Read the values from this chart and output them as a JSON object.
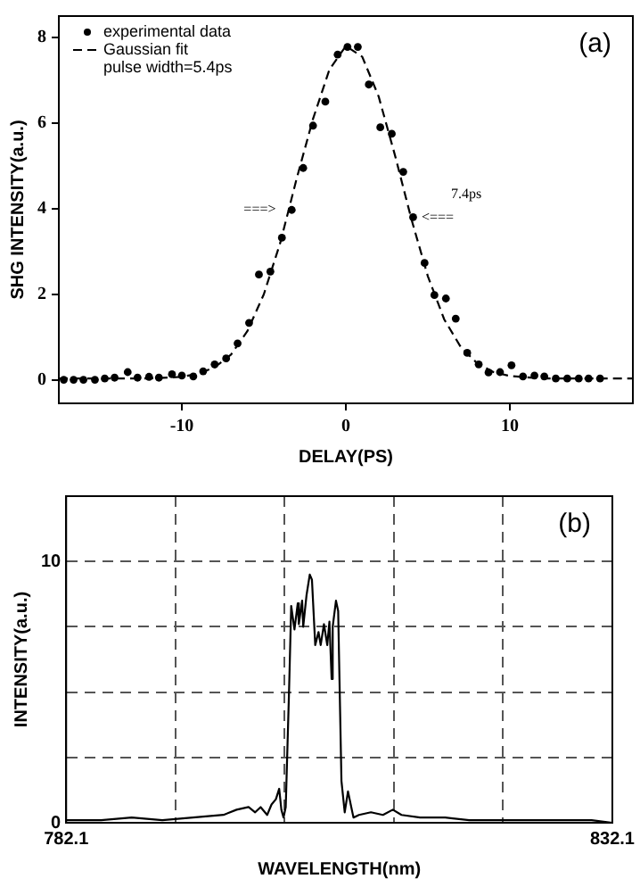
{
  "chart_data": [
    {
      "type": "scatter",
      "xlabel": "DELAY(PS)",
      "ylabel": "SHG INTENSITY(a.u.)",
      "xlim": [
        -17.5,
        17.5
      ],
      "ylim": [
        -0.55,
        8.5
      ],
      "xticks": [
        -10,
        0,
        10
      ],
      "yticks": [
        0,
        2,
        4,
        6,
        8
      ],
      "legend": "top left",
      "annotations": [
        "(a)",
        "pulse width=5.4ps",
        "===>",
        "<===",
        "7.4ps"
      ],
      "series": [
        {
          "name": "experimental data",
          "marker": "circle",
          "color": "#000000",
          "x": [
            -17.2,
            -16.6,
            -16,
            -15.3,
            -14.7,
            -14.1,
            -13.3,
            -12.7,
            -12,
            -11.4,
            -10.6,
            -10,
            -9.3,
            -8.7,
            -8,
            -7.3,
            -6.6,
            -5.9,
            -5.3,
            -4.6,
            -3.9,
            -3.3,
            -2.6,
            -2,
            -1.25,
            -0.5,
            0.1,
            0.73,
            1.4,
            2.1,
            2.8,
            3.5,
            4.1,
            4.8,
            5.4,
            6.1,
            6.7,
            7.4,
            8.1,
            8.7,
            9.4,
            10.1,
            10.8,
            11.5,
            12.1,
            12.8,
            13.5,
            14.2,
            14.8,
            15.5
          ],
          "values": [
            0,
            0,
            0,
            0,
            0.03,
            0.05,
            0.18,
            0.05,
            0.07,
            0.05,
            0.13,
            0.1,
            0.08,
            0.2,
            0.36,
            0.5,
            0.85,
            1.33,
            2.46,
            2.53,
            3.32,
            3.97,
            4.95,
            5.94,
            6.5,
            7.6,
            7.78,
            7.78,
            6.9,
            5.9,
            5.75,
            4.86,
            3.8,
            2.73,
            1.98,
            1.9,
            1.43,
            0.63,
            0.36,
            0.17,
            0.18,
            0.34,
            0.08,
            0.1,
            0.08,
            0.03,
            0.03,
            0.03,
            0.03,
            0.03
          ]
        },
        {
          "name": "Gaussian fit",
          "type": "line",
          "line_style": "dashed",
          "color": "#000000",
          "x": [
            -17.5,
            -12,
            -10,
            -9,
            -8,
            -7,
            -6,
            -5,
            -4,
            -3,
            -2,
            -1,
            0,
            1,
            2,
            3,
            4,
            5,
            6,
            7,
            8,
            9,
            10,
            12,
            17.5
          ],
          "values": [
            0.03,
            0.03,
            0.07,
            0.14,
            0.29,
            0.59,
            1.14,
            2,
            3.2,
            4.7,
            6.1,
            7.25,
            7.8,
            7.55,
            6.62,
            5.24,
            3.75,
            2.42,
            1.41,
            0.77,
            0.39,
            0.18,
            0.09,
            0.03,
            0.03
          ]
        }
      ]
    },
    {
      "type": "line",
      "xlabel": "WAVELENGTH(nm)",
      "ylabel": "INTENSITY(a.u.)",
      "xlim": [
        782.1,
        832.1
      ],
      "ylim": [
        0,
        12.5
      ],
      "grid": true,
      "xticks": [
        782.1,
        {
          "value": 792.1,
          "label": null
        },
        {
          "value": 802.1,
          "label": null
        },
        {
          "value": 812.1,
          "label": null
        },
        {
          "value": 822.1,
          "label": null
        },
        832.1
      ],
      "yticks": [
        0,
        {
          "value": 2.5,
          "label": null
        },
        {
          "value": 5,
          "label": null
        },
        {
          "value": 7.5,
          "label": null
        },
        10
      ],
      "annotations": [
        "(b)"
      ],
      "series": [
        {
          "color": "#000000",
          "x": [
            782.1,
            785.3,
            788.1,
            790.9,
            793.7,
            796.5,
            797.7,
            798.8,
            799.4,
            799.9,
            800.5,
            800.9,
            801.3,
            801.6,
            801.8,
            802,
            802.2,
            802.5,
            802.7,
            803,
            803.3,
            803.4,
            803.7,
            803.8,
            804.1,
            804.4,
            804.6,
            804.9,
            805.2,
            805.4,
            805.7,
            806,
            806.2,
            806.4,
            806.5,
            806.8,
            807,
            807.3,
            807.6,
            807.9,
            808.2,
            808.4,
            808.9,
            810,
            811.1,
            812,
            812.8,
            814.5,
            816.8,
            819,
            821.8,
            824.6,
            827.4,
            830.2,
            832.1
          ],
          "values": [
            0.1,
            0.1,
            0.2,
            0.1,
            0.2,
            0.3,
            0.5,
            0.6,
            0.4,
            0.6,
            0.3,
            0.7,
            0.9,
            1.3,
            0.5,
            0.2,
            0.6,
            5,
            8.3,
            7.4,
            8.4,
            7.6,
            8.5,
            7.5,
            8.7,
            9.5,
            9.3,
            6.8,
            7.3,
            6.8,
            7.6,
            6.8,
            7.7,
            5.5,
            7.5,
            8.5,
            8.1,
            1.6,
            0.4,
            1.2,
            0.6,
            0.2,
            0.3,
            0.4,
            0.3,
            0.5,
            0.3,
            0.2,
            0.2,
            0.1,
            0.1,
            0.1,
            0.1,
            0.1,
            0
          ]
        }
      ]
    }
  ]
}
